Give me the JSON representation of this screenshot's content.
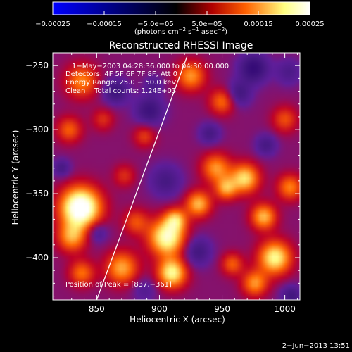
{
  "chart_data": {
    "type": "heatmap",
    "title": "Reconstructed RHESSI Image",
    "xlabel": "Heliocentric X (arcsec)",
    "ylabel": "Heliocentric Y (arcsec)",
    "xlim": [
      815,
      1012
    ],
    "ylim": [
      -433,
      -240
    ],
    "x_ticks": [
      850,
      900,
      950,
      1000
    ],
    "x_tick_labels": [
      "850",
      "900",
      "950",
      "1000"
    ],
    "y_ticks": [
      -400,
      -350,
      -300,
      -250
    ],
    "y_tick_labels": [
      "−400",
      "−350",
      "−300",
      "−250"
    ],
    "colorbar": {
      "min": -0.00025,
      "max": 0.00025,
      "ticks": [
        -0.00025,
        -0.00015,
        -5e-05,
        5e-05,
        0.00015,
        0.00025
      ],
      "tick_labels": [
        "−0.00025",
        "−0.00015",
        "−5.0e−05",
        "5.0e−05",
        "0.00015",
        "0.00025"
      ],
      "units_prefix": "(photons cm",
      "units_sup1": "−2",
      "units_mid": " s",
      "units_sup2": "−1",
      "units_suffix": " asec",
      "units_sup3": "−2",
      "units_close": ")",
      "colors": [
        "#0000ff",
        "#000000",
        "#b00000",
        "#ff6000",
        "#ffff80",
        "#ffffff"
      ]
    },
    "annotations": [
      "1−May−2003 04:28:36.000 to 04:30:00.000",
      "Detectors: 4F 5F 6F 7F 8F, Att 0",
      "Energy Range: 25.0 − 50.0 keV",
      "Clean    Total counts: 1.24E+03"
    ],
    "peak_label": "Position of Peak = [837,−361]",
    "peak": [
      837,
      -361
    ],
    "limb_line": [
      [
        850,
        -433
      ],
      [
        922,
        -243
      ]
    ],
    "blobs": [
      {
        "x": 837,
        "y": -361,
        "sigma": 11,
        "value": 0.00026
      },
      {
        "x": 830,
        "y": -384,
        "sigma": 8,
        "value": 0.00012
      },
      {
        "x": 838,
        "y": -412,
        "sigma": 7,
        "value": 0.0001
      },
      {
        "x": 870,
        "y": -408,
        "sigma": 9,
        "value": 0.00013
      },
      {
        "x": 881,
        "y": -372,
        "sigma": 7,
        "value": 8e-05
      },
      {
        "x": 872,
        "y": -336,
        "sigma": 6,
        "value": 6e-05
      },
      {
        "x": 906,
        "y": -384,
        "sigma": 10,
        "value": 0.0002
      },
      {
        "x": 910,
        "y": -412,
        "sigma": 8,
        "value": 0.00018
      },
      {
        "x": 913,
        "y": -370,
        "sigma": 6,
        "value": 0.00012
      },
      {
        "x": 931,
        "y": -358,
        "sigma": 7,
        "value": 0.00014
      },
      {
        "x": 945,
        "y": -330,
        "sigma": 8,
        "value": 0.00012
      },
      {
        "x": 953,
        "y": -346,
        "sigma": 6,
        "value": 0.00012
      },
      {
        "x": 968,
        "y": -338,
        "sigma": 8,
        "value": 0.00016
      },
      {
        "x": 983,
        "y": -368,
        "sigma": 7,
        "value": 0.00014
      },
      {
        "x": 992,
        "y": -400,
        "sigma": 9,
        "value": 0.00018
      },
      {
        "x": 976,
        "y": -420,
        "sigma": 7,
        "value": 0.00012
      },
      {
        "x": 958,
        "y": -405,
        "sigma": 6,
        "value": 9e-05
      },
      {
        "x": 1004,
        "y": -345,
        "sigma": 7,
        "value": 0.00011
      },
      {
        "x": 1000,
        "y": -292,
        "sigma": 7,
        "value": 8e-05
      },
      {
        "x": 950,
        "y": -278,
        "sigma": 7,
        "value": 0.0001
      },
      {
        "x": 925,
        "y": -258,
        "sigma": 8,
        "value": 0.00012
      },
      {
        "x": 838,
        "y": -262,
        "sigma": 9,
        "value": 0.00011
      },
      {
        "x": 828,
        "y": -300,
        "sigma": 7,
        "value": 9e-05
      },
      {
        "x": 855,
        "y": -292,
        "sigma": 6,
        "value": 6e-05
      },
      {
        "x": 888,
        "y": -305,
        "sigma": 6,
        "value": 7e-05
      },
      {
        "x": 865,
        "y": -270,
        "sigma": 7,
        "value": -8e-05
      },
      {
        "x": 892,
        "y": -285,
        "sigma": 8,
        "value": -8e-05
      },
      {
        "x": 905,
        "y": -340,
        "sigma": 9,
        "value": -6e-05
      },
      {
        "x": 895,
        "y": -265,
        "sigma": 5,
        "value": -5e-05
      },
      {
        "x": 975,
        "y": -252,
        "sigma": 8,
        "value": -0.0001
      },
      {
        "x": 963,
        "y": -272,
        "sigma": 7,
        "value": -7e-05
      },
      {
        "x": 930,
        "y": -395,
        "sigma": 8,
        "value": -7e-05
      },
      {
        "x": 850,
        "y": -380,
        "sigma": 6,
        "value": -6e-05
      },
      {
        "x": 888,
        "y": -425,
        "sigma": 7,
        "value": -4e-05
      },
      {
        "x": 1005,
        "y": -430,
        "sigma": 6,
        "value": -7e-05
      },
      {
        "x": 1003,
        "y": -255,
        "sigma": 7,
        "value": -5e-05
      },
      {
        "x": 940,
        "y": -303,
        "sigma": 6,
        "value": -6e-05
      },
      {
        "x": 822,
        "y": -330,
        "sigma": 5,
        "value": -6e-05
      },
      {
        "x": 985,
        "y": -312,
        "sigma": 6,
        "value": -6e-05
      }
    ]
  },
  "footer": {
    "date": "2−Jun−2013 13:51"
  }
}
